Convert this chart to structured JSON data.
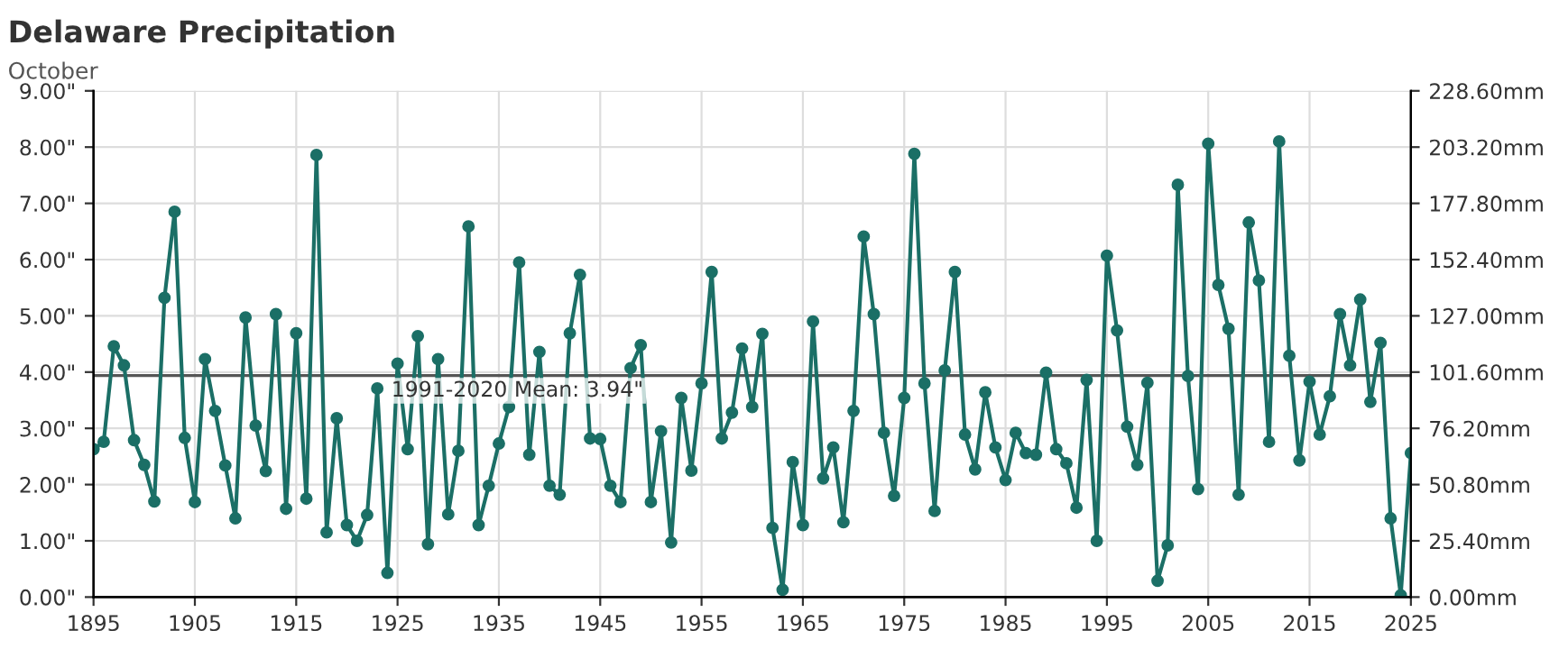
{
  "chart_data": {
    "type": "line",
    "title": "Delaware Precipitation",
    "subtitle": "October",
    "x": [
      1895,
      1896,
      1897,
      1898,
      1899,
      1900,
      1901,
      1902,
      1903,
      1904,
      1905,
      1906,
      1907,
      1908,
      1909,
      1910,
      1911,
      1912,
      1913,
      1914,
      1915,
      1916,
      1917,
      1918,
      1919,
      1920,
      1921,
      1922,
      1923,
      1924,
      1925,
      1926,
      1927,
      1928,
      1929,
      1930,
      1931,
      1932,
      1933,
      1934,
      1935,
      1936,
      1937,
      1938,
      1939,
      1940,
      1941,
      1942,
      1943,
      1944,
      1945,
      1946,
      1947,
      1948,
      1949,
      1950,
      1951,
      1952,
      1953,
      1954,
      1955,
      1956,
      1957,
      1958,
      1959,
      1960,
      1961,
      1962,
      1963,
      1964,
      1965,
      1966,
      1967,
      1968,
      1969,
      1970,
      1971,
      1972,
      1973,
      1974,
      1975,
      1976,
      1977,
      1978,
      1979,
      1980,
      1981,
      1982,
      1983,
      1984,
      1985,
      1986,
      1987,
      1988,
      1989,
      1990,
      1991,
      1992,
      1993,
      1994,
      1995,
      1996,
      1997,
      1998,
      1999,
      2000,
      2001,
      2002,
      2003,
      2004,
      2005,
      2006,
      2007,
      2008,
      2009,
      2010,
      2011,
      2012,
      2013,
      2014,
      2015,
      2016,
      2017,
      2018,
      2019,
      2020,
      2021,
      2022,
      2023,
      2024,
      2025
    ],
    "series": [
      {
        "color": "#1b6f66",
        "values": [
          2.63,
          2.76,
          4.46,
          4.12,
          2.79,
          2.35,
          1.7,
          5.32,
          6.85,
          2.83,
          1.69,
          4.23,
          3.31,
          2.34,
          1.4,
          4.97,
          3.05,
          2.24,
          5.03,
          1.57,
          4.69,
          1.75,
          7.86,
          1.15,
          3.18,
          1.28,
          1.0,
          1.46,
          3.71,
          0.43,
          4.15,
          2.63,
          4.64,
          0.94,
          4.23,
          1.47,
          2.6,
          6.59,
          1.28,
          1.98,
          2.73,
          3.38,
          5.95,
          2.53,
          4.36,
          1.98,
          1.82,
          4.69,
          5.73,
          2.82,
          2.81,
          1.98,
          1.69,
          4.07,
          4.48,
          1.69,
          2.95,
          0.97,
          3.54,
          2.25,
          3.8,
          5.78,
          2.82,
          3.28,
          4.42,
          3.38,
          4.68,
          1.23,
          0.13,
          2.4,
          1.28,
          4.9,
          2.11,
          2.66,
          1.33,
          3.31,
          6.41,
          5.03,
          2.92,
          1.8,
          3.54,
          7.88,
          3.8,
          1.53,
          4.03,
          5.78,
          2.89,
          2.27,
          3.64,
          2.66,
          2.08,
          2.92,
          2.56,
          2.53,
          3.99,
          2.63,
          2.38,
          1.59,
          3.86,
          1.0,
          6.07,
          4.74,
          3.03,
          2.35,
          3.81,
          0.29,
          0.92,
          7.33,
          3.93,
          1.92,
          8.06,
          5.55,
          4.77,
          1.82,
          6.66,
          5.63,
          2.76,
          8.1,
          4.29,
          2.43,
          3.83,
          2.89,
          3.57,
          5.03,
          4.12,
          5.29,
          3.47,
          4.52,
          1.4,
          0.03,
          2.56
        ]
      }
    ],
    "xlim": [
      1895,
      2025
    ],
    "xticks": [
      1895,
      1905,
      1915,
      1925,
      1935,
      1945,
      1955,
      1965,
      1975,
      1985,
      1995,
      2005,
      2015,
      2025
    ],
    "ylim": [
      0,
      9
    ],
    "yticks": [
      {
        "value": 0,
        "label": "0.00\""
      },
      {
        "value": 1,
        "label": "1.00\""
      },
      {
        "value": 2,
        "label": "2.00\""
      },
      {
        "value": 3,
        "label": "3.00\""
      },
      {
        "value": 4,
        "label": "4.00\""
      },
      {
        "value": 5,
        "label": "5.00\""
      },
      {
        "value": 6,
        "label": "6.00\""
      },
      {
        "value": 7,
        "label": "7.00\""
      },
      {
        "value": 8,
        "label": "8.00\""
      },
      {
        "value": 9,
        "label": "9.00\""
      }
    ],
    "y2lim": [
      0,
      228.6
    ],
    "y2ticks": [
      {
        "value": 0,
        "label": "0.00mm"
      },
      {
        "value": 25.4,
        "label": "25.40mm"
      },
      {
        "value": 50.8,
        "label": "50.80mm"
      },
      {
        "value": 76.2,
        "label": "76.20mm"
      },
      {
        "value": 101.6,
        "label": "101.60mm"
      },
      {
        "value": 127,
        "label": "127.00mm"
      },
      {
        "value": 152.4,
        "label": "152.40mm"
      },
      {
        "value": 177.8,
        "label": "177.80mm"
      },
      {
        "value": 203.2,
        "label": "203.20mm"
      },
      {
        "value": 228.6,
        "label": "228.60mm"
      }
    ],
    "ref_lines": [
      {
        "axis": "y",
        "value": 3.94,
        "label": "1991-2020 Mean: 3.94\"",
        "color": "#555555"
      }
    ],
    "grid": true,
    "marker": "circle",
    "line_style": "solid",
    "legend": false
  }
}
